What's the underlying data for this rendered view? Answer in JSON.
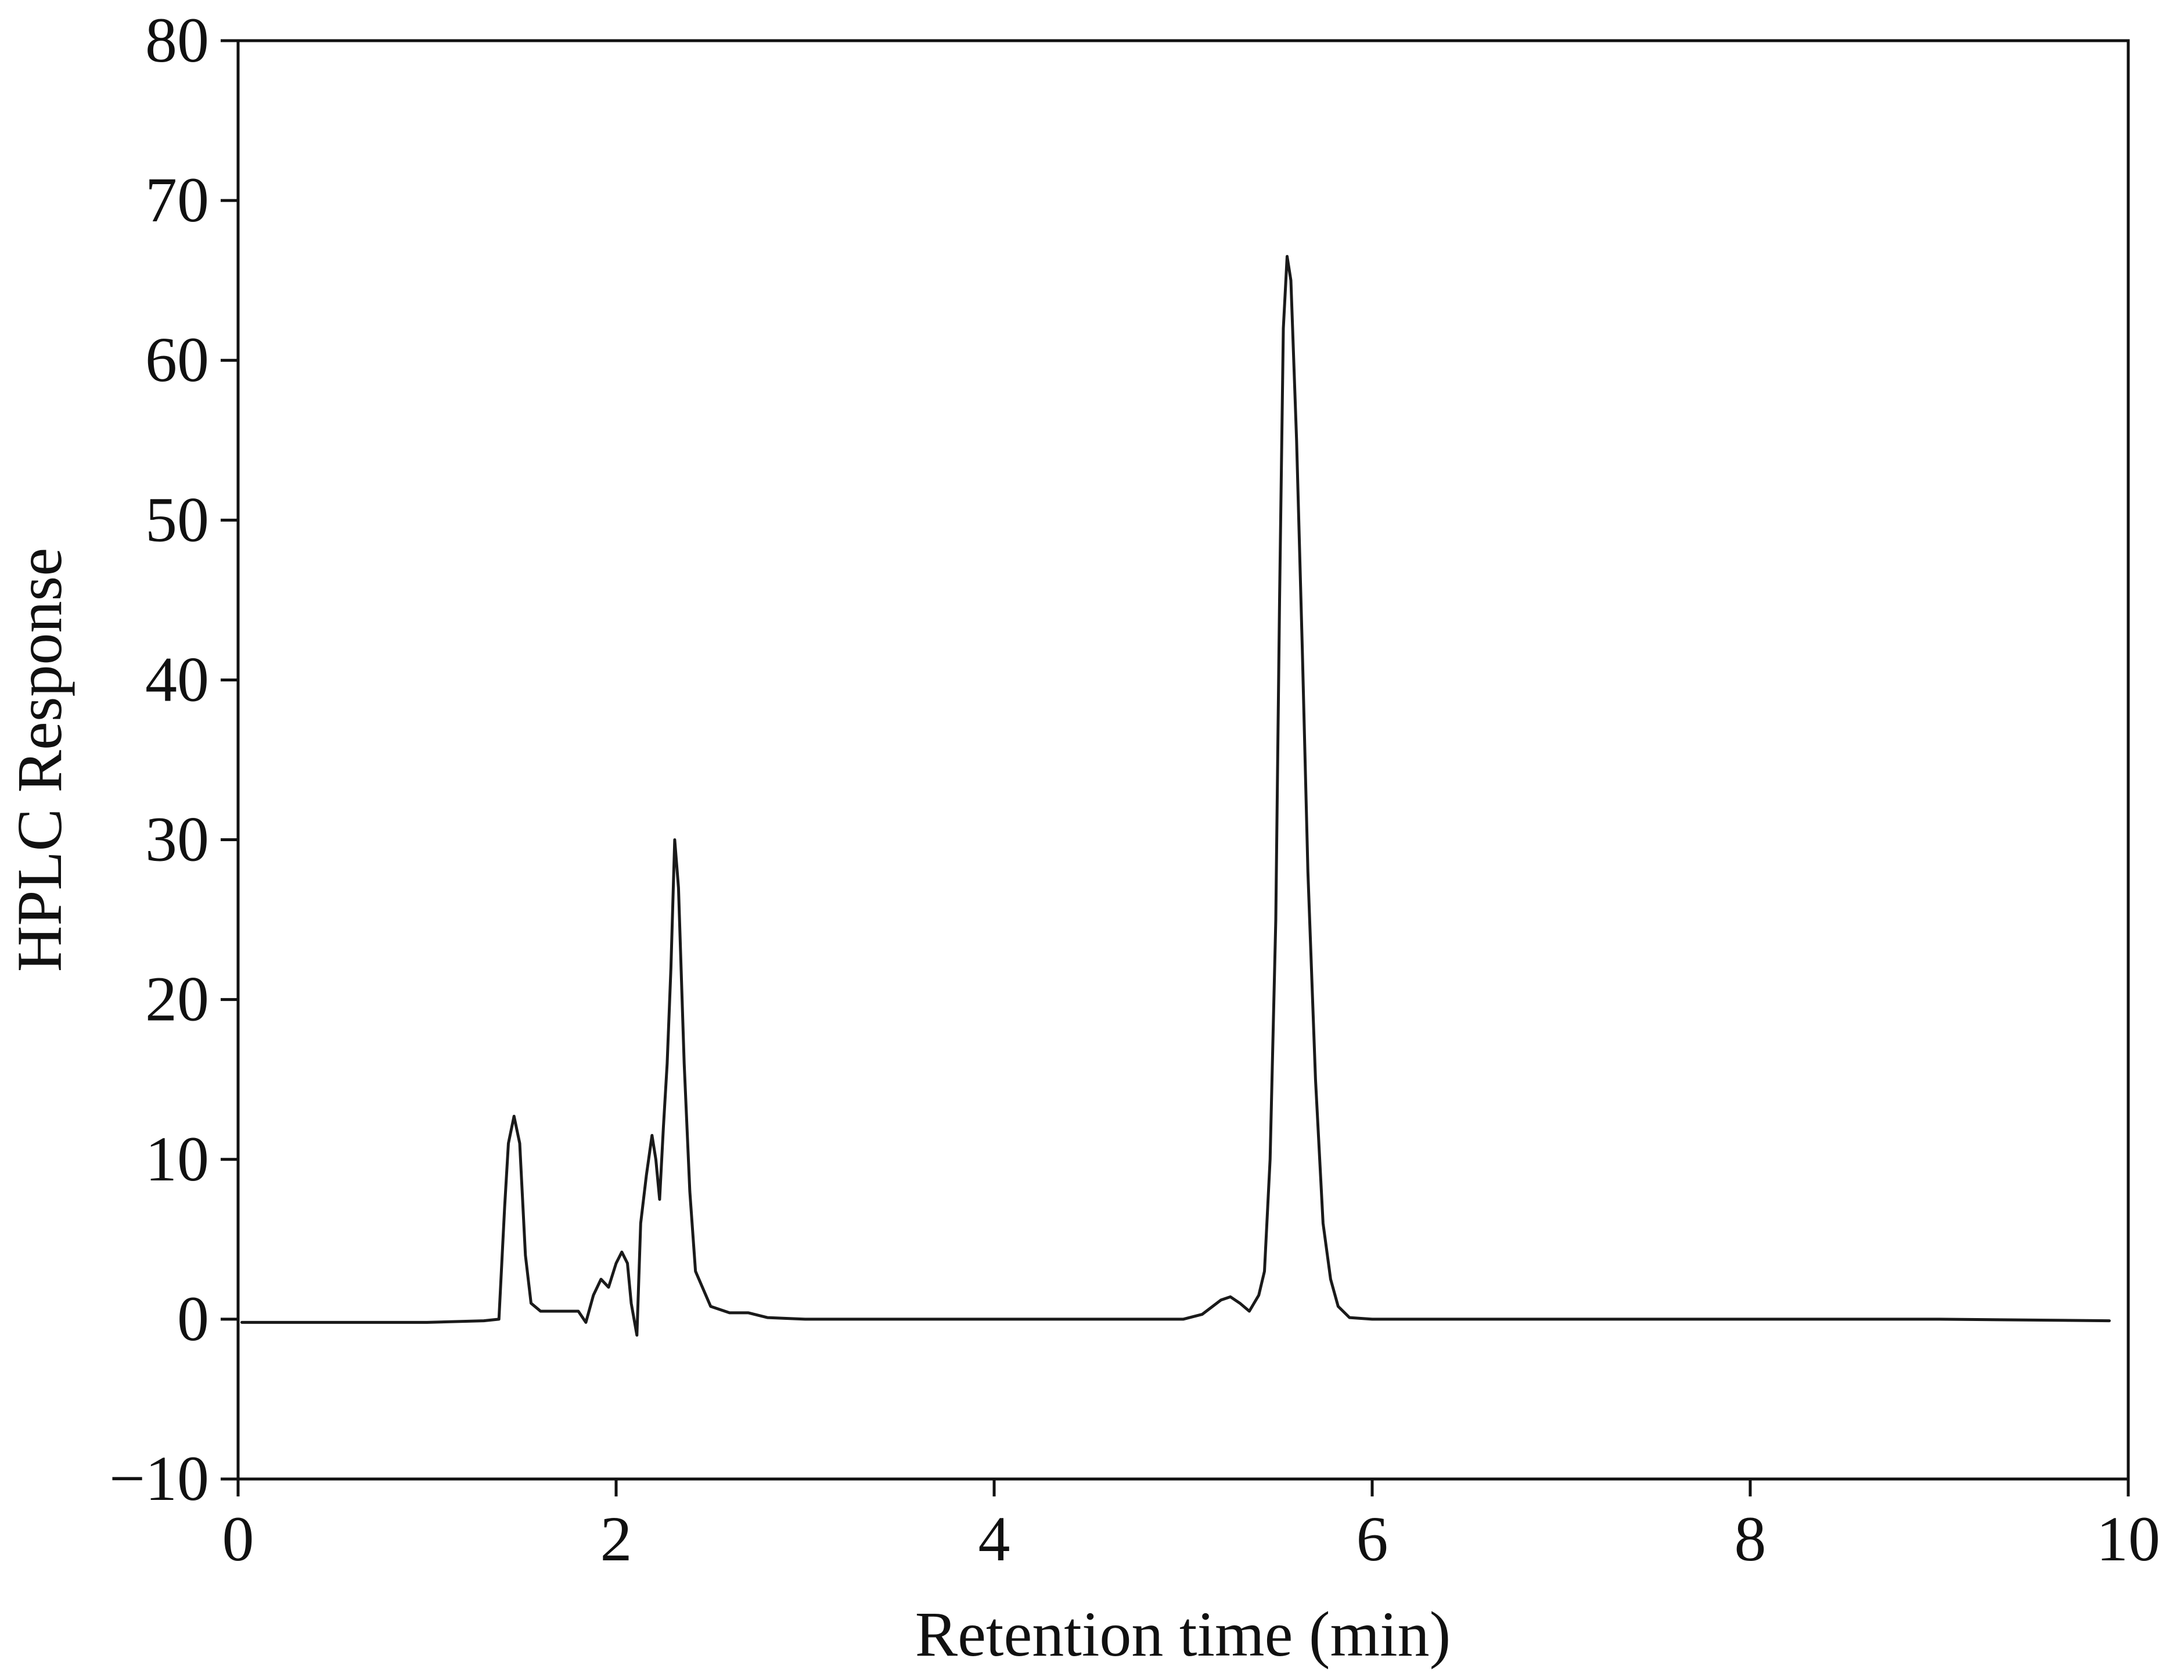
{
  "chart_data": {
    "type": "line",
    "title": "",
    "xlabel": "Retention time (min)",
    "ylabel": "HPLC Response",
    "xlim": [
      0,
      10
    ],
    "ylim": [
      -10,
      80
    ],
    "x_ticks": [
      0,
      2,
      4,
      6,
      8,
      10
    ],
    "x_tick_labels": [
      "0",
      "2",
      "4",
      "6",
      "8",
      "10"
    ],
    "y_ticks": [
      -10,
      0,
      10,
      20,
      30,
      40,
      50,
      60,
      70,
      80
    ],
    "y_tick_labels": [
      "−10",
      "0",
      "10",
      "20",
      "30",
      "40",
      "50",
      "60",
      "70",
      "80"
    ],
    "grid": false,
    "legend": "none",
    "line_color": "#1a1a1a",
    "series": [
      {
        "x": [
          0.02,
          0.5,
          1.0,
          1.3,
          1.38,
          1.41,
          1.43,
          1.46,
          1.49,
          1.52,
          1.55,
          1.6,
          1.7,
          1.8,
          1.84,
          1.88,
          1.92,
          1.96,
          2.0,
          2.03,
          2.06,
          2.08,
          2.11,
          2.13,
          2.16,
          2.19,
          2.21,
          2.23,
          2.25,
          2.27,
          2.29,
          2.31,
          2.33,
          2.36,
          2.39,
          2.42,
          2.5,
          2.6,
          2.7,
          2.8,
          3.0,
          3.5,
          4.0,
          4.5,
          5.0,
          5.1,
          5.2,
          5.25,
          5.3,
          5.35,
          5.4,
          5.43,
          5.46,
          5.49,
          5.51,
          5.53,
          5.55,
          5.57,
          5.6,
          5.63,
          5.66,
          5.7,
          5.74,
          5.78,
          5.82,
          5.88,
          6.0,
          7.0,
          8.0,
          9.0,
          9.9
        ],
        "y": [
          -0.2,
          -0.2,
          -0.2,
          -0.1,
          0.0,
          7.0,
          11.0,
          12.7,
          11.0,
          4.0,
          1.0,
          0.5,
          0.5,
          0.5,
          -0.2,
          1.5,
          2.5,
          2.0,
          3.5,
          4.2,
          3.5,
          1.0,
          -1.0,
          6.0,
          9.0,
          11.5,
          10.0,
          7.5,
          12.0,
          16.0,
          22.0,
          30.0,
          27.0,
          16.0,
          8.0,
          3.0,
          0.8,
          0.4,
          0.4,
          0.1,
          0.0,
          0.0,
          0.0,
          0.0,
          0.0,
          0.3,
          1.2,
          1.4,
          1.0,
          0.5,
          1.5,
          3.0,
          10.0,
          25.0,
          45.0,
          62.0,
          66.5,
          65.0,
          55.0,
          42.0,
          28.0,
          15.0,
          6.0,
          2.5,
          0.8,
          0.1,
          0.0,
          0.0,
          0.0,
          0.0,
          -0.1
        ]
      }
    ]
  }
}
